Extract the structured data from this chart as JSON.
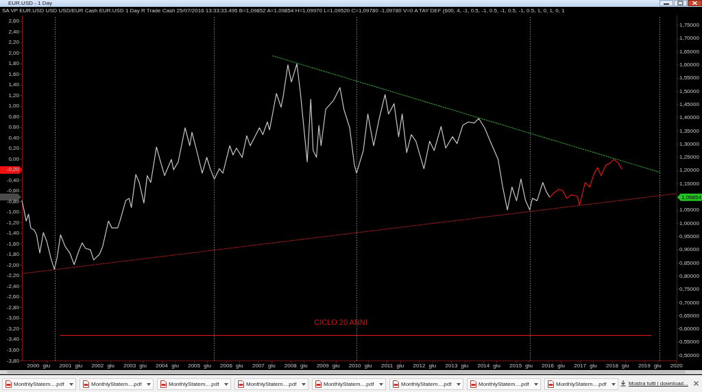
{
  "chart_data": {
    "type": "line",
    "title": "EUR.USD - 1 Day",
    "subtitle": "SA VP EUR.USD USD USD/EUR Cash EUR.USD 1 Day R Trade Cash 25/07/2016 13:33:33.495 B=1,09852 A=1,09854 H=1,09970 L=1,09520 C=1,09780 -1,09780 V=0 A TAY DEF (600, 4, -1, 0.5, -1, 0.5, -1, 0.5, -1, 0.5, 1, 0, 1, 0, 1",
    "xlim": [
      "1999-08-26",
      "2020-01-03"
    ],
    "xticks": [
      {
        "value": "2000",
        "label": "2000"
      },
      {
        "value": "2000-06",
        "label": "giu"
      },
      {
        "value": "2001",
        "label": "2001"
      },
      {
        "value": "2001-06",
        "label": "giu"
      },
      {
        "value": "2002",
        "label": "2002"
      },
      {
        "value": "2002-06",
        "label": "giu"
      },
      {
        "value": "2003",
        "label": "2003"
      },
      {
        "value": "2003-06",
        "label": "giu"
      },
      {
        "value": "2004",
        "label": "2004"
      },
      {
        "value": "2004-06",
        "label": "giu"
      },
      {
        "value": "2005",
        "label": "2005"
      },
      {
        "value": "2005-06",
        "label": "giu"
      },
      {
        "value": "2006",
        "label": "2006"
      },
      {
        "value": "2006-06",
        "label": "giu"
      },
      {
        "value": "2007",
        "label": "2007"
      },
      {
        "value": "2007-06",
        "label": "giu"
      },
      {
        "value": "2008",
        "label": "2008"
      },
      {
        "value": "2008-06",
        "label": "giu"
      },
      {
        "value": "2009",
        "label": "2009"
      },
      {
        "value": "2009-06",
        "label": "giu"
      },
      {
        "value": "2010",
        "label": "2010"
      },
      {
        "value": "2010-06",
        "label": "giu"
      },
      {
        "value": "2011",
        "label": "2011"
      },
      {
        "value": "2011-06",
        "label": "giu"
      },
      {
        "value": "2012",
        "label": "2012"
      },
      {
        "value": "2012-06",
        "label": "giu"
      },
      {
        "value": "2013",
        "label": "2013"
      },
      {
        "value": "2013-06",
        "label": "giu"
      },
      {
        "value": "2014",
        "label": "2014"
      },
      {
        "value": "2014-06",
        "label": "giu"
      },
      {
        "value": "2015",
        "label": "2015"
      },
      {
        "value": "2015-06",
        "label": "giu"
      },
      {
        "value": "2016",
        "label": "2016"
      },
      {
        "value": "2016-06",
        "label": "giu"
      },
      {
        "value": "2017",
        "label": "2017"
      },
      {
        "value": "2017-06",
        "label": "giu"
      },
      {
        "value": "2018",
        "label": "2018"
      },
      {
        "value": "2018-06",
        "label": "giu"
      },
      {
        "value": "2019",
        "label": "2019"
      },
      {
        "value": "2019-06",
        "label": "giu"
      },
      {
        "value": "2020",
        "label": "2020"
      }
    ],
    "ylim": [
      -3.8,
      2.7
    ],
    "yticks": [
      {
        "value": -3.8,
        "label": "-3,80"
      },
      {
        "value": -3.6,
        "label": "-3,60"
      },
      {
        "value": -3.4,
        "label": "-3,40"
      },
      {
        "value": -3.2,
        "label": "-3,20"
      },
      {
        "value": -3,
        "label": "-3,00"
      },
      {
        "value": -2.8,
        "label": "-2,80"
      },
      {
        "value": -2.6,
        "label": "-2,60"
      },
      {
        "value": -2.4,
        "label": "-2,40"
      },
      {
        "value": -2.2,
        "label": "-2,20"
      },
      {
        "value": -2,
        "label": "-2,00"
      },
      {
        "value": -1.8,
        "label": "-1,80"
      },
      {
        "value": -1.6,
        "label": "-1,60"
      },
      {
        "value": -1.4,
        "label": "-1,40"
      },
      {
        "value": -1.2,
        "label": "-1,20"
      },
      {
        "value": -1,
        "label": "-1,00"
      },
      {
        "value": -0.8,
        "label": "-0,80"
      },
      {
        "value": -0.6,
        "label": "-0,60"
      },
      {
        "value": -0.4,
        "label": "-0,40"
      },
      {
        "value": -0.2,
        "label": "-0,20"
      },
      {
        "value": 0,
        "label": "0,00"
      },
      {
        "value": 0.2,
        "label": "0,20"
      },
      {
        "value": 0.4,
        "label": "0,40"
      },
      {
        "value": 0.6,
        "label": "0,60"
      },
      {
        "value": 0.8,
        "label": "0,80"
      },
      {
        "value": 1,
        "label": "1,00"
      },
      {
        "value": 1.2,
        "label": "1,20"
      },
      {
        "value": 1.4,
        "label": "1,40"
      },
      {
        "value": 1.6,
        "label": "1,60"
      },
      {
        "value": 1.8,
        "label": "1,80"
      },
      {
        "value": 2,
        "label": "2,00"
      },
      {
        "value": 2.2,
        "label": "2,20"
      },
      {
        "value": 2.4,
        "label": "2,40"
      },
      {
        "value": 2.6,
        "label": "2,60"
      }
    ],
    "y2lim": [
      0.48,
      1.785
    ],
    "y2ticks": [
      {
        "value": 0.5,
        "label": "0,50000"
      },
      {
        "value": 0.55,
        "label": "0,55000"
      },
      {
        "value": 0.6,
        "label": "0,60000"
      },
      {
        "value": 0.65,
        "label": "0,65000"
      },
      {
        "value": 0.7,
        "label": "0,70000"
      },
      {
        "value": 0.75,
        "label": "0,75000"
      },
      {
        "value": 0.8,
        "label": "0,80000"
      },
      {
        "value": 0.85,
        "label": "0,85000"
      },
      {
        "value": 0.9,
        "label": "0,90000"
      },
      {
        "value": 0.95,
        "label": "0,95000"
      },
      {
        "value": 1,
        "label": "1,00000"
      },
      {
        "value": 1.05,
        "label": "1,05000"
      },
      {
        "value": 1.15,
        "label": "1,15000"
      },
      {
        "value": 1.2,
        "label": "1,20000"
      },
      {
        "value": 1.25,
        "label": "1,25000"
      },
      {
        "value": 1.3,
        "label": "1,30000"
      },
      {
        "value": 1.35,
        "label": "1,35000"
      },
      {
        "value": 1.4,
        "label": "1,40000"
      },
      {
        "value": 1.45,
        "label": "1,45000"
      },
      {
        "value": 1.5,
        "label": "1,50000"
      },
      {
        "value": 1.55,
        "label": "1,55000"
      },
      {
        "value": 1.6,
        "label": "1,60000"
      },
      {
        "value": 1.65,
        "label": "1,65000"
      },
      {
        "value": 1.7,
        "label": "1,70000"
      },
      {
        "value": 1.75,
        "label": "1,75000"
      }
    ],
    "marker": "none",
    "series": [
      {
        "color": "#c8c8c8",
        "axis": "y2",
        "line_style": "solid",
        "x": [
          "1999-08-26",
          "1999-09-18",
          "1999-10-13",
          "1999-11-09",
          "1999-12-04",
          "2000-01-13",
          "2000-02-08",
          "2000-03-16",
          "2000-04-25",
          "2000-06-03",
          "2000-07-25",
          "2000-08-28",
          "2000-09-28",
          "2000-11-07",
          "2000-12-28",
          "2001-02-20",
          "2001-04-10",
          "2001-06-02",
          "2001-07-10",
          "2001-08-18",
          "2001-10-10",
          "2001-11-18",
          "2002-01-22",
          "2002-02-28",
          "2002-05-04",
          "2002-06-12",
          "2002-08-17",
          "2002-09-12",
          "2002-11-16",
          "2002-12-24",
          "2003-01-20",
          "2003-03-11",
          "2003-04-19",
          "2003-06-11",
          "2003-07-19",
          "2003-08-28",
          "2003-11-01",
          "2003-12-10",
          "2004-02-01",
          "2004-04-18",
          "2004-05-13",
          "2004-07-05",
          "2004-09-21",
          "2004-11-13",
          "2004-12-08",
          "2005-01-30",
          "2005-04-03",
          "2005-05-25",
          "2005-07-03",
          "2005-08-19",
          "2005-10-15",
          "2005-11-24",
          "2006-02-10",
          "2006-03-19",
          "2006-04-27",
          "2006-07-01",
          "2006-08-22",
          "2006-10-01",
          "2007-01-13",
          "2007-02-21",
          "2007-04-13",
          "2007-05-08",
          "2007-07-25",
          "2007-09-16",
          "2007-10-11",
          "2007-12-02",
          "2008-01-11",
          "2008-03-14",
          "2008-04-23",
          "2008-07-09",
          "2008-08-18",
          "2008-09-14",
          "2008-10-22",
          "2008-11-18",
          "2008-12-13",
          "2009-02-04",
          "2009-05-04",
          "2009-07-16",
          "2009-08-29",
          "2009-11-03",
          "2009-12-25",
          "2010-01-20",
          "2010-04-07",
          "2010-05-28",
          "2010-08-02",
          "2010-10-05",
          "2010-12-10",
          "2011-01-18",
          "2011-03-22",
          "2011-05-13",
          "2011-06-22",
          "2011-08-12",
          "2011-10-04",
          "2011-11-25",
          "2012-02-24",
          "2012-04-29",
          "2012-06-20",
          "2012-09-06",
          "2012-10-28",
          "2013-01-14",
          "2013-03-06",
          "2013-05-10",
          "2013-07-13",
          "2013-09-18",
          "2013-11-08",
          "2014-01-13",
          "2014-03-30",
          "2014-06-16",
          "2014-08-07",
          "2014-09-29",
          "2014-11-20",
          "2015-01-11",
          "2015-03-02",
          "2015-04-23",
          "2015-06-10",
          "2015-07-10",
          "2015-09-01",
          "2015-11-05",
          "2015-12-14",
          "2016-01-22"
        ],
        "values": [
          1.085,
          1.05,
          1.008,
          1.034,
          0.982,
          0.973,
          0.956,
          0.887,
          0.964,
          0.931,
          0.861,
          0.826,
          0.869,
          0.956,
          0.912,
          0.887,
          0.843,
          0.895,
          0.925,
          0.904,
          0.9,
          0.861,
          0.882,
          0.912,
          1.008,
          0.982,
          0.982,
          1.008,
          1.085,
          1.094,
          1.059,
          1.184,
          1.154,
          1.076,
          1.18,
          1.154,
          1.288,
          1.241,
          1.18,
          1.241,
          1.202,
          1.232,
          1.361,
          1.293,
          1.344,
          1.275,
          1.189,
          1.249,
          1.206,
          1.167,
          1.206,
          1.189,
          1.293,
          1.258,
          1.284,
          1.249,
          1.331,
          1.293,
          1.361,
          1.335,
          1.383,
          1.353,
          1.491,
          1.439,
          1.482,
          1.599,
          1.534,
          1.603,
          1.491,
          1.232,
          1.469,
          1.275,
          1.249,
          1.37,
          1.293,
          1.431,
          1.465,
          1.513,
          1.431,
          1.361,
          1.223,
          1.189,
          1.275,
          1.413,
          1.293,
          1.396,
          1.487,
          1.413,
          1.452,
          1.327,
          1.413,
          1.267,
          1.335,
          1.31,
          1.206,
          1.31,
          1.275,
          1.366,
          1.284,
          1.327,
          1.301,
          1.37,
          1.383,
          1.379,
          1.396,
          1.361,
          1.301,
          1.241,
          1.137,
          1.05,
          1.137,
          1.085,
          1.167,
          1.085,
          1.05,
          1.094,
          1.085,
          1.154,
          1.12,
          1.098
        ]
      },
      {
        "color": "#e01414",
        "axis": "y2",
        "line_style": "solid",
        "x": [
          "2016-01-22",
          "2016-03-13",
          "2016-05-04",
          "2016-06-13",
          "2016-08-04",
          "2016-09-25",
          "2016-11-29",
          "2016-12-25",
          "2017-01-20",
          "2017-02-28",
          "2017-04-20",
          "2017-06-11",
          "2017-07-19",
          "2017-08-28",
          "2017-10-19",
          "2017-12-10",
          "2018-01-18",
          "2018-03-10",
          "2018-04-18"
        ],
        "values": [
          1.098,
          1.115,
          1.128,
          1.124,
          1.094,
          1.107,
          1.102,
          1.068,
          1.102,
          1.154,
          1.137,
          1.189,
          1.21,
          1.18,
          1.219,
          1.228,
          1.241,
          1.228,
          1.206
        ]
      },
      {
        "type": "line",
        "color": "#2f9a2f",
        "axis": "y2",
        "line_style": "dotted",
        "x": [
          "2007-06-15",
          "2019-06-21"
        ],
        "values": [
          1.633,
          1.193
        ]
      },
      {
        "type": "line",
        "color": "#a01c1c",
        "axis": "y2",
        "line_style": "dotted",
        "x": [
          "1999-08-26",
          "2020-01-03"
        ],
        "values": [
          0.809,
          1.112
        ]
      },
      {
        "type": "line",
        "name": "CICLO 20 ANNI",
        "color": "#c81414",
        "axis": "y2",
        "line_style": "solid",
        "x": [
          "2000-11-05",
          "2019-03-20"
        ],
        "values": [
          0.575,
          0.575
        ]
      }
    ],
    "ref_lines": [
      {
        "axis": "x",
        "value": "2000-09-04",
        "color": "#8a8a8a",
        "line_style": "dotted"
      },
      {
        "axis": "x",
        "value": "2005-08-14",
        "color": "#8a8a8a",
        "line_style": "dotted"
      },
      {
        "axis": "x",
        "value": "2010-01-20",
        "color": "#8a8a8a",
        "line_style": "dotted"
      },
      {
        "axis": "x",
        "value": "2015-06-11",
        "color": "#8a8a8a",
        "line_style": "dotted"
      },
      {
        "axis": "x",
        "value": "2019-06-21",
        "color": "#8a8a8a",
        "line_style": "dotted"
      }
    ],
    "annotations": [
      "1,09854",
      "MonthlyStatem....pdf",
      "MonthlyStatem....pdf",
      "MonthlyStatem....pdf",
      "MonthlyStatem....pdf",
      "MonthlyStatem....pdf",
      "MonthlyStatem....pdf",
      "MonthlyStatem....pdf",
      "MonthlyStatem....pdf",
      "Mostra tutti i download..."
    ]
  }
}
